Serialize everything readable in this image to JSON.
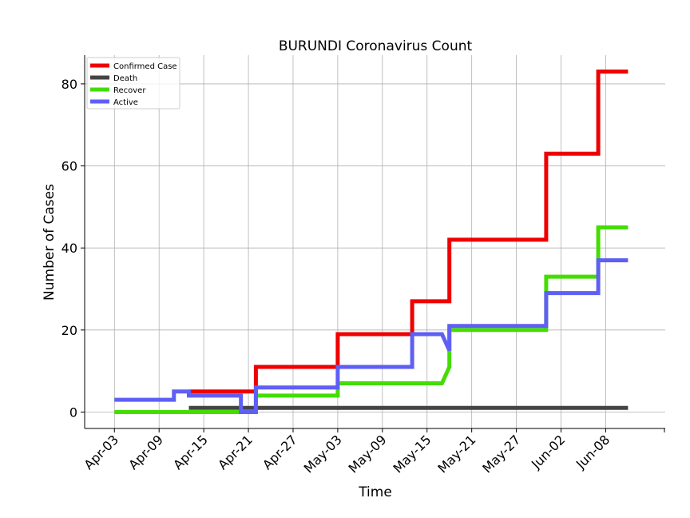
{
  "chart_data": {
    "type": "line",
    "title": "BURUNDI Coronavirus Count",
    "xlabel": "Time",
    "ylabel": "Number of Cases",
    "x_tick_labels": [
      "Apr-03",
      "Apr-09",
      "Apr-15",
      "Apr-21",
      "Apr-27",
      "May-03",
      "May-09",
      "May-15",
      "May-21",
      "May-27",
      "Jun-02",
      "Jun-08"
    ],
    "y_ticks": [
      0,
      20,
      40,
      60,
      80
    ],
    "xlim": [
      "2020-03-30",
      "2020-06-16"
    ],
    "ylim": [
      -4,
      87
    ],
    "grid": true,
    "legend_position": "top-left",
    "series": [
      {
        "name": "Confirmed Case",
        "color": "#ee0000",
        "x": [
          "2020-04-13",
          "2020-04-22",
          "2020-04-22",
          "2020-05-03",
          "2020-05-03",
          "2020-05-13",
          "2020-05-13",
          "2020-05-18",
          "2020-05-18",
          "2020-05-31",
          "2020-05-31",
          "2020-06-07",
          "2020-06-07",
          "2020-06-11"
        ],
        "y": [
          5,
          5,
          11,
          11,
          19,
          19,
          27,
          27,
          42,
          42,
          63,
          63,
          83,
          83
        ]
      },
      {
        "name": "Death",
        "color": "#444444",
        "x": [
          "2020-04-13",
          "2020-06-11"
        ],
        "y": [
          1,
          1
        ]
      },
      {
        "name": "Recover",
        "color": "#44dd00",
        "x": [
          "2020-04-03",
          "2020-04-20",
          "2020-04-22",
          "2020-04-22",
          "2020-05-03",
          "2020-05-03",
          "2020-05-17",
          "2020-05-18",
          "2020-05-18",
          "2020-05-31",
          "2020-05-31",
          "2020-06-07",
          "2020-06-07",
          "2020-06-11"
        ],
        "y": [
          0,
          0,
          0,
          4,
          4,
          7,
          7,
          11,
          20,
          20,
          33,
          33,
          45,
          45
        ]
      },
      {
        "name": "Active",
        "color": "#5f5ff5",
        "x": [
          "2020-04-03",
          "2020-04-11",
          "2020-04-11",
          "2020-04-13",
          "2020-04-13",
          "2020-04-20",
          "2020-04-20",
          "2020-04-22",
          "2020-04-22",
          "2020-05-03",
          "2020-05-03",
          "2020-05-13",
          "2020-05-13",
          "2020-05-17",
          "2020-05-18",
          "2020-05-18",
          "2020-05-31",
          "2020-05-31",
          "2020-06-07",
          "2020-06-07",
          "2020-06-11"
        ],
        "y": [
          3,
          3,
          5,
          5,
          4,
          4,
          0,
          0,
          6,
          6,
          11,
          11,
          19,
          19,
          15,
          21,
          21,
          29,
          29,
          37,
          37
        ]
      }
    ]
  }
}
